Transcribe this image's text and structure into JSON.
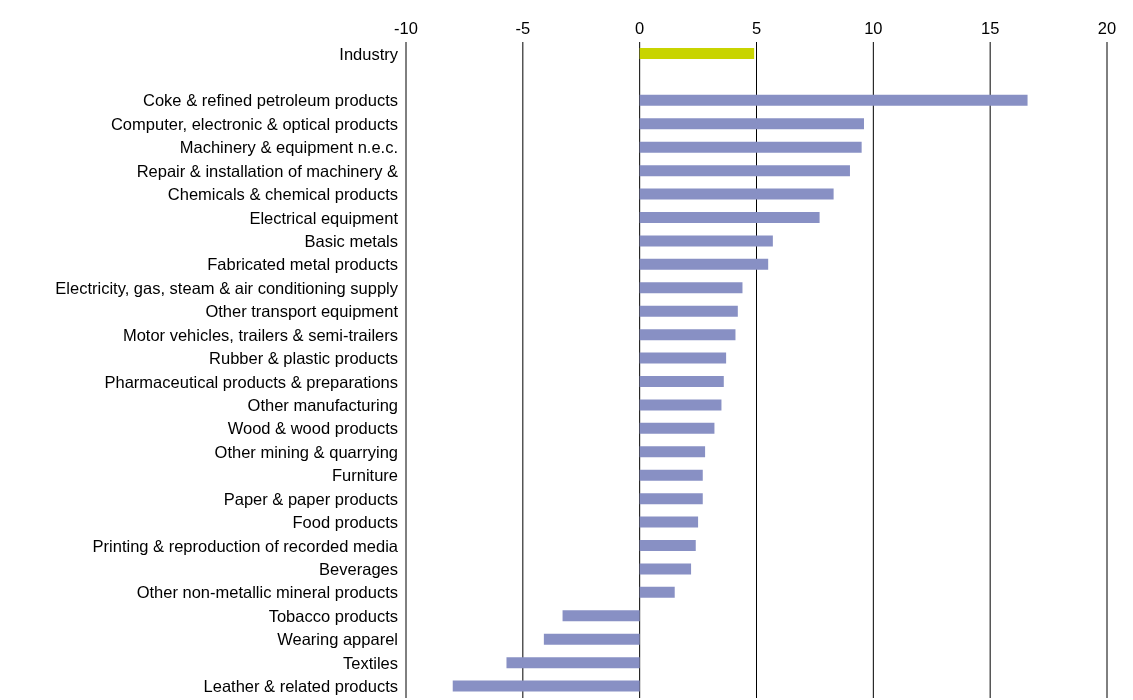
{
  "chart_data": {
    "type": "bar",
    "orientation": "horizontal",
    "categories": [
      "Industry",
      null,
      "Coke & refined petroleum products",
      "Computer, electronic & optical products",
      "Machinery & equipment n.e.c.",
      "Repair & installation of machinery &",
      "Chemicals & chemical products",
      "Electrical equipment",
      "Basic metals",
      "Fabricated metal products",
      "Electricity, gas, steam & air conditioning supply",
      "Other transport equipment",
      "Motor vehicles, trailers & semi-trailers",
      "Rubber & plastic products",
      "Pharmaceutical products & preparations",
      "Other manufacturing",
      "Wood & wood products",
      "Other mining & quarrying",
      "Furniture",
      "Paper & paper products",
      "Food products",
      "Printing & reproduction of recorded media",
      "Beverages",
      "Other non-metallic mineral products",
      "Tobacco products",
      "Wearing apparel",
      "Textiles",
      "Leather & related products"
    ],
    "values": [
      4.9,
      null,
      16.6,
      9.6,
      9.5,
      9.0,
      8.3,
      7.7,
      5.7,
      5.5,
      4.4,
      4.2,
      4.1,
      3.7,
      3.6,
      3.5,
      3.2,
      2.8,
      2.7,
      2.7,
      2.5,
      2.4,
      2.2,
      1.5,
      -3.3,
      -4.1,
      -5.7,
      -8.0
    ],
    "colors": [
      "#c8d400",
      null,
      "#8890c4",
      "#8890c4",
      "#8890c4",
      "#8890c4",
      "#8890c4",
      "#8890c4",
      "#8890c4",
      "#8890c4",
      "#8890c4",
      "#8890c4",
      "#8890c4",
      "#8890c4",
      "#8890c4",
      "#8890c4",
      "#8890c4",
      "#8890c4",
      "#8890c4",
      "#8890c4",
      "#8890c4",
      "#8890c4",
      "#8890c4",
      "#8890c4",
      "#8890c4",
      "#8890c4",
      "#8890c4",
      "#8890c4"
    ],
    "xlim": [
      -10,
      20
    ],
    "xticks": [
      -10,
      -5,
      0,
      5,
      10,
      15,
      20
    ],
    "grid": "x"
  }
}
